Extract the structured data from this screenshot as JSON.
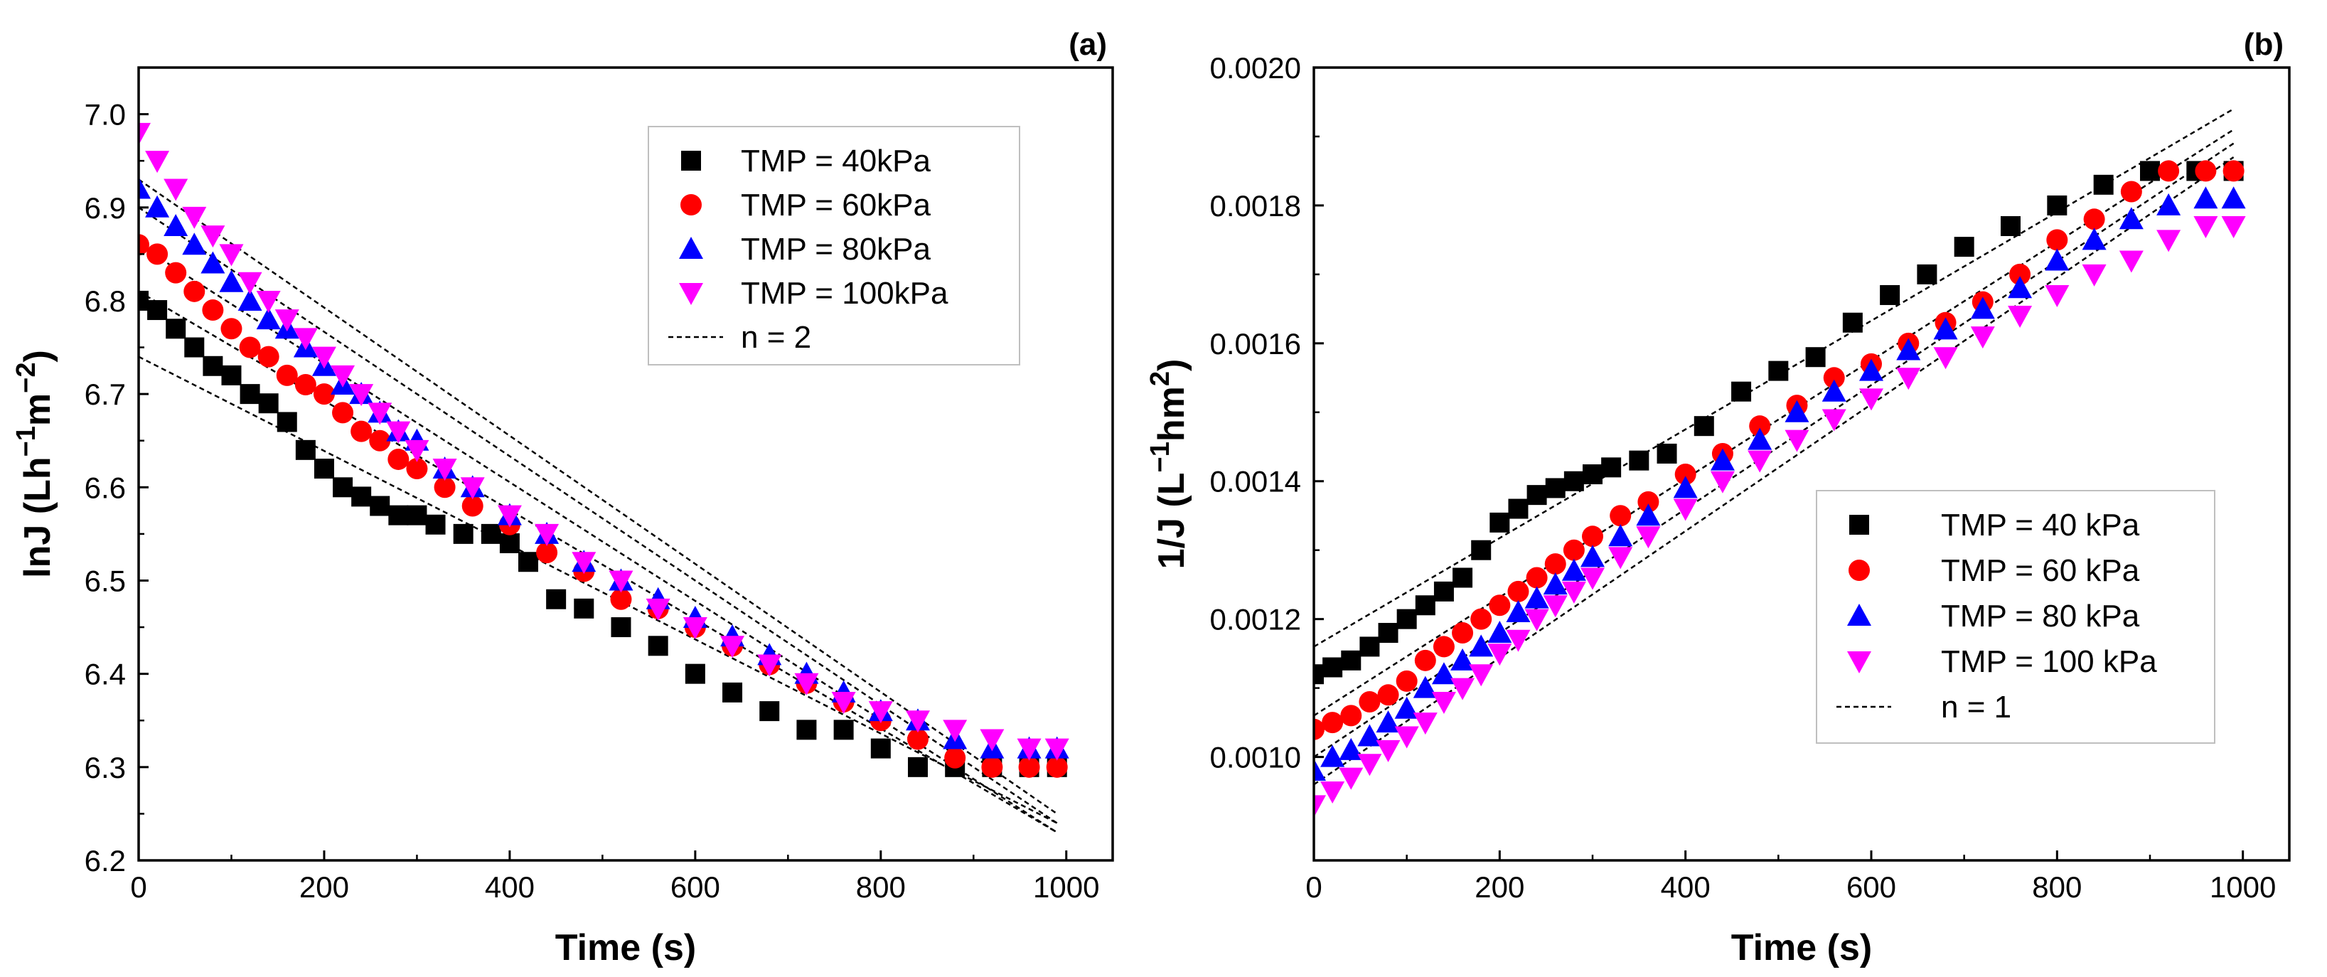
{
  "chart_data": [
    {
      "type": "scatter",
      "panel_label": "(a)",
      "xlabel": "Time (s)",
      "ylabel_parts": [
        "lnJ (Lh",
        "−1",
        "m",
        "−2",
        ")"
      ],
      "xlim": [
        0,
        1050
      ],
      "ylim": [
        6.2,
        7.05
      ],
      "xticks": [
        0,
        200,
        400,
        600,
        800,
        1000
      ],
      "xtick_labels": [
        "0",
        "200",
        "400",
        "600",
        "800",
        "1000"
      ],
      "yticks": [
        6.2,
        6.3,
        6.4,
        6.5,
        6.6,
        6.7,
        6.8,
        6.9,
        7.0
      ],
      "ytick_labels": [
        "6.2",
        "6.3",
        "6.4",
        "6.5",
        "6.6",
        "6.7",
        "6.8",
        "6.9",
        "7.0"
      ],
      "legend_position": "top-right",
      "series": [
        {
          "name": "TMP = 40kPa",
          "marker": "square",
          "color": "#000000",
          "x": [
            0,
            20,
            40,
            60,
            80,
            100,
            120,
            140,
            160,
            180,
            200,
            220,
            240,
            260,
            280,
            300,
            320,
            350,
            380,
            400,
            420,
            450,
            480,
            520,
            560,
            600,
            640,
            680,
            720,
            760,
            800,
            840,
            880,
            920,
            960,
            990
          ],
          "y": [
            6.8,
            6.79,
            6.77,
            6.75,
            6.73,
            6.72,
            6.7,
            6.69,
            6.67,
            6.64,
            6.62,
            6.6,
            6.59,
            6.58,
            6.57,
            6.57,
            6.56,
            6.55,
            6.55,
            6.54,
            6.52,
            6.48,
            6.47,
            6.45,
            6.43,
            6.4,
            6.38,
            6.36,
            6.34,
            6.34,
            6.32,
            6.3,
            6.3,
            6.3,
            6.3,
            6.3
          ]
        },
        {
          "name": "TMP = 60kPa",
          "marker": "circle",
          "color": "#ff0000",
          "x": [
            0,
            20,
            40,
            60,
            80,
            100,
            120,
            140,
            160,
            180,
            200,
            220,
            240,
            260,
            280,
            300,
            330,
            360,
            400,
            440,
            480,
            520,
            560,
            600,
            640,
            680,
            720,
            760,
            800,
            840,
            880,
            920,
            960,
            990
          ],
          "y": [
            6.86,
            6.85,
            6.83,
            6.81,
            6.79,
            6.77,
            6.75,
            6.74,
            6.72,
            6.71,
            6.7,
            6.68,
            6.66,
            6.65,
            6.63,
            6.62,
            6.6,
            6.58,
            6.56,
            6.53,
            6.51,
            6.48,
            6.47,
            6.45,
            6.43,
            6.41,
            6.39,
            6.37,
            6.35,
            6.33,
            6.31,
            6.3,
            6.3,
            6.3
          ]
        },
        {
          "name": "TMP = 80kPa",
          "marker": "triangle-up",
          "color": "#0000ff",
          "x": [
            0,
            20,
            40,
            60,
            80,
            100,
            120,
            140,
            160,
            180,
            200,
            220,
            240,
            260,
            280,
            300,
            330,
            360,
            400,
            440,
            480,
            520,
            560,
            600,
            640,
            680,
            720,
            760,
            800,
            840,
            880,
            920,
            960,
            990
          ],
          "y": [
            6.92,
            6.9,
            6.88,
            6.86,
            6.84,
            6.82,
            6.8,
            6.78,
            6.77,
            6.75,
            6.73,
            6.71,
            6.7,
            6.68,
            6.66,
            6.65,
            6.62,
            6.6,
            6.57,
            6.55,
            6.52,
            6.5,
            6.48,
            6.46,
            6.44,
            6.42,
            6.4,
            6.38,
            6.36,
            6.35,
            6.33,
            6.32,
            6.32,
            6.32
          ]
        },
        {
          "name": "TMP = 100kPa",
          "marker": "triangle-down",
          "color": "#ff00ff",
          "x": [
            0,
            20,
            40,
            60,
            80,
            100,
            120,
            140,
            160,
            180,
            200,
            220,
            240,
            260,
            280,
            300,
            330,
            360,
            400,
            440,
            480,
            520,
            560,
            600,
            640,
            680,
            720,
            760,
            800,
            840,
            880,
            920,
            960,
            990
          ],
          "y": [
            6.98,
            6.95,
            6.92,
            6.89,
            6.87,
            6.85,
            6.82,
            6.8,
            6.78,
            6.76,
            6.74,
            6.72,
            6.7,
            6.68,
            6.66,
            6.64,
            6.62,
            6.6,
            6.57,
            6.55,
            6.52,
            6.5,
            6.47,
            6.45,
            6.43,
            6.41,
            6.39,
            6.37,
            6.36,
            6.35,
            6.34,
            6.33,
            6.32,
            6.32
          ]
        },
        {
          "name": "n = 2",
          "line_style": "dashed",
          "color": "#000000",
          "fits": [
            {
              "x": [
                0,
                990
              ],
              "y": [
                6.74,
                6.24
              ]
            },
            {
              "x": [
                0,
                990
              ],
              "y": [
                6.81,
                6.23
              ]
            },
            {
              "x": [
                0,
                990
              ],
              "y": [
                6.86,
                6.23
              ]
            },
            {
              "x": [
                0,
                990
              ],
              "y": [
                6.9,
                6.24
              ]
            },
            {
              "x": [
                0,
                990
              ],
              "y": [
                6.93,
                6.25
              ]
            }
          ]
        }
      ]
    },
    {
      "type": "scatter",
      "panel_label": "(b)",
      "xlabel": "Time (s)",
      "ylabel_parts": [
        "1/J (L",
        "−1",
        "hm",
        "2",
        ")"
      ],
      "xlim": [
        0,
        1050
      ],
      "ylim": [
        0.00085,
        0.002
      ],
      "xticks": [
        0,
        200,
        400,
        600,
        800,
        1000
      ],
      "xtick_labels": [
        "0",
        "200",
        "400",
        "600",
        "800",
        "1000"
      ],
      "yticks": [
        0.001,
        0.0012,
        0.0014,
        0.0016,
        0.0018,
        0.002
      ],
      "ytick_labels": [
        "0.0010",
        "0.0012",
        "0.0014",
        "0.0016",
        "0.0018",
        "0.0020"
      ],
      "legend_position": "bottom-right",
      "series": [
        {
          "name": "TMP = 40 kPa",
          "marker": "square",
          "color": "#000000",
          "x": [
            0,
            20,
            40,
            60,
            80,
            100,
            120,
            140,
            160,
            180,
            200,
            220,
            240,
            260,
            280,
            300,
            320,
            350,
            380,
            420,
            460,
            500,
            540,
            580,
            620,
            660,
            700,
            750,
            800,
            850,
            900,
            950,
            990
          ],
          "y": [
            0.00112,
            0.00113,
            0.00114,
            0.00116,
            0.00118,
            0.0012,
            0.00122,
            0.00124,
            0.00126,
            0.0013,
            0.00134,
            0.00136,
            0.00138,
            0.00139,
            0.0014,
            0.00141,
            0.00142,
            0.00143,
            0.00144,
            0.00148,
            0.00153,
            0.00156,
            0.00158,
            0.00163,
            0.00167,
            0.0017,
            0.00174,
            0.00177,
            0.0018,
            0.00183,
            0.00185,
            0.00185,
            0.00185
          ]
        },
        {
          "name": "TMP = 60 kPa",
          "marker": "circle",
          "color": "#ff0000",
          "x": [
            0,
            20,
            40,
            60,
            80,
            100,
            120,
            140,
            160,
            180,
            200,
            220,
            240,
            260,
            280,
            300,
            330,
            360,
            400,
            440,
            480,
            520,
            560,
            600,
            640,
            680,
            720,
            760,
            800,
            840,
            880,
            920,
            960,
            990
          ],
          "y": [
            0.00104,
            0.00105,
            0.00106,
            0.00108,
            0.00109,
            0.00111,
            0.00114,
            0.00116,
            0.00118,
            0.0012,
            0.00122,
            0.00124,
            0.00126,
            0.00128,
            0.0013,
            0.00132,
            0.00135,
            0.00137,
            0.00141,
            0.00144,
            0.00148,
            0.00151,
            0.00155,
            0.00157,
            0.0016,
            0.00163,
            0.00166,
            0.0017,
            0.00175,
            0.00178,
            0.00182,
            0.00185,
            0.00185,
            0.00185
          ]
        },
        {
          "name": "TMP = 80 kPa",
          "marker": "triangle-up",
          "color": "#0000ff",
          "x": [
            0,
            20,
            40,
            60,
            80,
            100,
            120,
            140,
            160,
            180,
            200,
            220,
            240,
            260,
            280,
            300,
            330,
            360,
            400,
            440,
            480,
            520,
            560,
            600,
            640,
            680,
            720,
            760,
            800,
            840,
            880,
            920,
            960,
            990
          ],
          "y": [
            0.00098,
            0.001,
            0.00101,
            0.00103,
            0.00105,
            0.00107,
            0.0011,
            0.00112,
            0.00114,
            0.00116,
            0.00118,
            0.00121,
            0.00123,
            0.00125,
            0.00127,
            0.00129,
            0.00132,
            0.00135,
            0.00139,
            0.00143,
            0.00146,
            0.0015,
            0.00153,
            0.00156,
            0.00159,
            0.00162,
            0.00165,
            0.00168,
            0.00172,
            0.00175,
            0.00178,
            0.0018,
            0.00181,
            0.00181
          ]
        },
        {
          "name": "TMP = 100 kPa",
          "marker": "triangle-down",
          "color": "#ff00ff",
          "x": [
            0,
            20,
            40,
            60,
            80,
            100,
            120,
            140,
            160,
            180,
            200,
            220,
            240,
            260,
            280,
            300,
            330,
            360,
            400,
            440,
            480,
            520,
            560,
            600,
            640,
            680,
            720,
            760,
            800,
            840,
            880,
            920,
            960,
            990
          ],
          "y": [
            0.00093,
            0.00095,
            0.00097,
            0.00099,
            0.00101,
            0.00103,
            0.00105,
            0.00108,
            0.0011,
            0.00112,
            0.00115,
            0.00117,
            0.0012,
            0.00122,
            0.00124,
            0.00126,
            0.00129,
            0.00132,
            0.00136,
            0.0014,
            0.00143,
            0.00146,
            0.00149,
            0.00152,
            0.00155,
            0.00158,
            0.00161,
            0.00164,
            0.00167,
            0.0017,
            0.00172,
            0.00175,
            0.00177,
            0.00177
          ]
        },
        {
          "name": "n = 1",
          "line_style": "dashed",
          "color": "#000000",
          "fits": [
            {
              "x": [
                0,
                990
              ],
              "y": [
                0.00116,
                0.00194
              ]
            },
            {
              "x": [
                0,
                990
              ],
              "y": [
                0.00106,
                0.00191
              ]
            },
            {
              "x": [
                0,
                990
              ],
              "y": [
                0.001,
                0.00189
              ]
            },
            {
              "x": [
                0,
                990
              ],
              "y": [
                0.00096,
                0.00187
              ]
            }
          ]
        }
      ]
    }
  ]
}
